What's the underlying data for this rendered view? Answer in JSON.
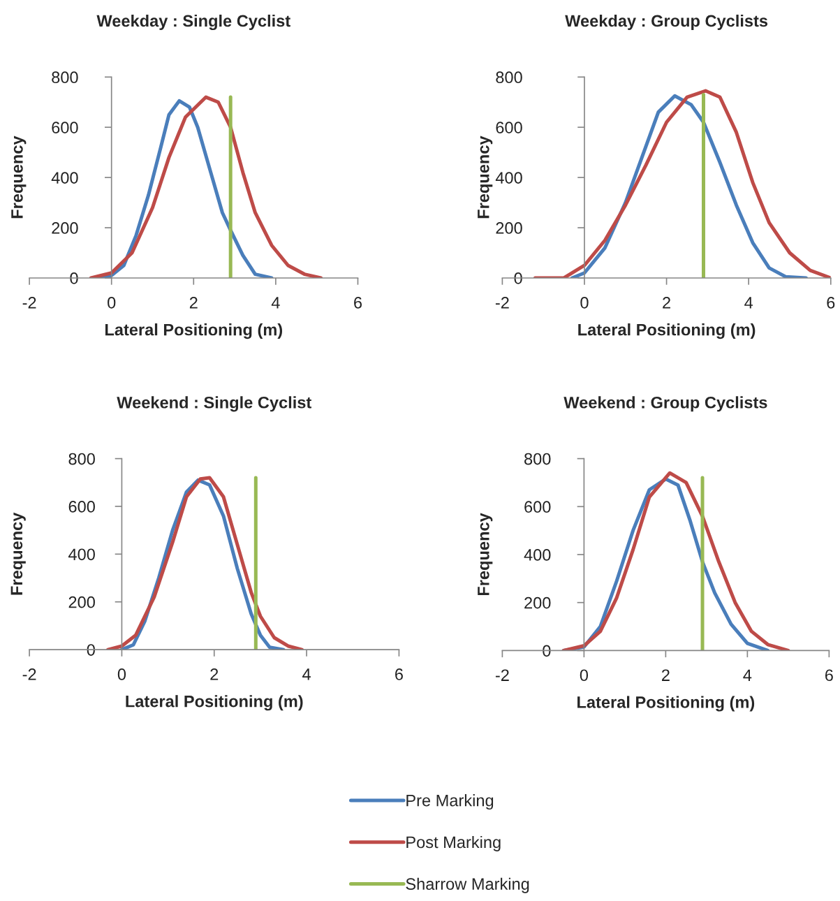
{
  "chart_data": [
    {
      "type": "line",
      "title": "Weekday : Single Cyclist",
      "xlabel": "Lateral Positioning (m)",
      "ylabel": "Frequency",
      "xlim": [
        -2,
        6
      ],
      "xticks": [
        -2,
        0,
        2,
        4,
        6
      ],
      "ylim": [
        0,
        800
      ],
      "yticks": [
        0,
        200,
        400,
        600,
        800
      ],
      "legend": "bottom",
      "marker": "none",
      "line_style": "solid",
      "series": [
        {
          "name": "Pre Marking",
          "color": "#4a7ebb",
          "x": [
            -0.4,
            0,
            0.3,
            0.6,
            0.9,
            1.2,
            1.4,
            1.65,
            1.9,
            2.1,
            2.4,
            2.7,
            2.9,
            3.2,
            3.5,
            3.9
          ],
          "values": [
            0,
            10,
            50,
            170,
            330,
            520,
            650,
            705,
            680,
            600,
            430,
            260,
            190,
            90,
            15,
            0
          ]
        },
        {
          "name": "Post Marking",
          "color": "#be4b48",
          "x": [
            -0.5,
            0,
            0.5,
            1,
            1.4,
            1.8,
            2.3,
            2.6,
            2.9,
            3.2,
            3.5,
            3.9,
            4.3,
            4.7,
            5.1
          ],
          "values": [
            0,
            20,
            100,
            280,
            480,
            640,
            720,
            700,
            600,
            420,
            260,
            130,
            50,
            15,
            0
          ]
        },
        {
          "name": "Sharrow Marking",
          "color": "#98b954",
          "x": [
            2.9,
            2.9
          ],
          "values": [
            0,
            720
          ]
        }
      ]
    },
    {
      "type": "line",
      "title": "Weekday : Group Cyclists",
      "xlabel": "Lateral Positioning (m)",
      "ylabel": "Frequency",
      "xlim": [
        -2,
        6
      ],
      "xticks": [
        -2,
        0,
        2,
        4,
        6
      ],
      "ylim": [
        0,
        800
      ],
      "yticks": [
        0,
        200,
        400,
        600,
        800
      ],
      "legend": "bottom",
      "marker": "none",
      "line_style": "solid",
      "series": [
        {
          "name": "Pre Marking",
          "color": "#4a7ebb",
          "x": [
            -0.3,
            0,
            0.5,
            1,
            1.4,
            1.8,
            2.2,
            2.6,
            2.9,
            3.3,
            3.7,
            4.1,
            4.5,
            4.9,
            5.4
          ],
          "values": [
            0,
            20,
            120,
            300,
            480,
            660,
            725,
            690,
            620,
            460,
            290,
            140,
            40,
            5,
            0
          ]
        },
        {
          "name": "Post Marking",
          "color": "#be4b48",
          "x": [
            -1.2,
            -0.5,
            0,
            0.5,
            1,
            1.5,
            2,
            2.5,
            2.95,
            3.3,
            3.7,
            4.1,
            4.5,
            5,
            5.5,
            6
          ],
          "values": [
            0,
            0,
            50,
            150,
            290,
            450,
            620,
            720,
            745,
            720,
            580,
            380,
            220,
            100,
            30,
            0
          ]
        },
        {
          "name": "Sharrow Marking",
          "color": "#98b954",
          "x": [
            2.9,
            2.9
          ],
          "values": [
            0,
            730
          ]
        }
      ]
    },
    {
      "type": "line",
      "title": "Weekend : Single Cyclist",
      "xlabel": "Lateral Positioning (m)",
      "ylabel": "Frequency",
      "xlim": [
        -2,
        6
      ],
      "xticks": [
        -2,
        0,
        2,
        4,
        6
      ],
      "ylim": [
        0,
        800
      ],
      "yticks": [
        0,
        200,
        400,
        600,
        800
      ],
      "legend": "bottom",
      "marker": "none",
      "line_style": "solid",
      "series": [
        {
          "name": "Pre Marking",
          "color": "#4a7ebb",
          "x": [
            0,
            0.25,
            0.5,
            0.8,
            1.1,
            1.4,
            1.65,
            1.9,
            2.2,
            2.5,
            2.8,
            3.0,
            3.2,
            3.5
          ],
          "values": [
            0,
            20,
            120,
            300,
            500,
            660,
            710,
            690,
            560,
            340,
            150,
            60,
            10,
            0
          ]
        },
        {
          "name": "Post Marking",
          "color": "#be4b48",
          "x": [
            -0.3,
            0,
            0.3,
            0.7,
            1.1,
            1.4,
            1.7,
            1.9,
            2.2,
            2.5,
            2.8,
            3.0,
            3.3,
            3.6,
            3.9
          ],
          "values": [
            0,
            15,
            60,
            220,
            450,
            640,
            715,
            720,
            640,
            440,
            240,
            140,
            50,
            15,
            0
          ]
        },
        {
          "name": "Sharrow Marking",
          "color": "#98b954",
          "x": [
            2.9,
            2.9
          ],
          "values": [
            0,
            720
          ]
        }
      ]
    },
    {
      "type": "line",
      "title": "Weekend : Group Cyclists",
      "xlabel": "Lateral Positioning (m)",
      "ylabel": "Frequency",
      "xlim": [
        -2,
        6
      ],
      "xticks": [
        -2,
        0,
        2,
        4,
        6
      ],
      "ylim": [
        0,
        800
      ],
      "yticks": [
        0,
        200,
        400,
        600,
        800
      ],
      "legend": "bottom",
      "marker": "none",
      "line_style": "solid",
      "series": [
        {
          "name": "Pre Marking",
          "color": "#4a7ebb",
          "x": [
            -0.5,
            0,
            0.4,
            0.8,
            1.2,
            1.6,
            2.0,
            2.3,
            2.6,
            2.9,
            3.2,
            3.6,
            4.0,
            4.5
          ],
          "values": [
            0,
            15,
            100,
            290,
            500,
            670,
            715,
            690,
            540,
            370,
            240,
            110,
            30,
            0
          ]
        },
        {
          "name": "Post Marking",
          "color": "#be4b48",
          "x": [
            -0.5,
            0,
            0.4,
            0.8,
            1.2,
            1.6,
            2.1,
            2.5,
            2.9,
            3.3,
            3.7,
            4.1,
            4.5,
            5.0
          ],
          "values": [
            0,
            20,
            80,
            220,
            420,
            640,
            740,
            700,
            560,
            370,
            200,
            80,
            25,
            0
          ]
        },
        {
          "name": "Sharrow Marking",
          "color": "#98b954",
          "x": [
            2.9,
            2.9
          ],
          "values": [
            0,
            720
          ]
        }
      ]
    }
  ]
}
